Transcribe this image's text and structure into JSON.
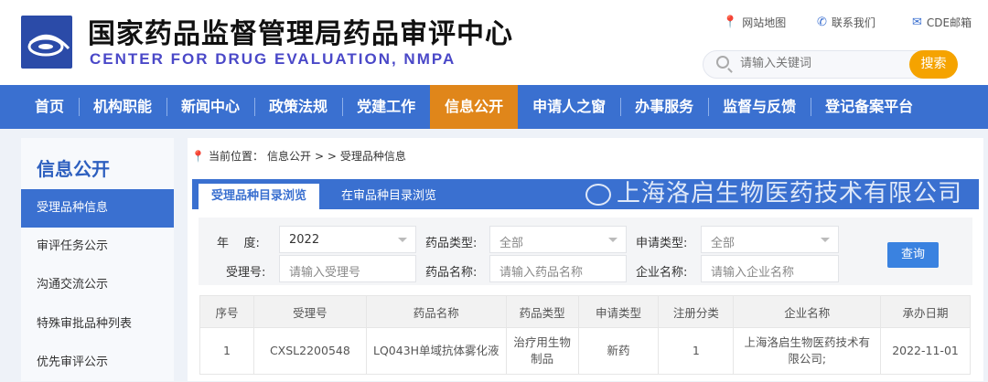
{
  "header": {
    "title": "国家药品监督管理局药品审评中心",
    "subtitle": "CENTER FOR DRUG EVALUATION, NMPA",
    "links": [
      {
        "label": "网站地图",
        "icon": "location-pin-icon"
      },
      {
        "label": "联系我们",
        "icon": "phone-icon"
      },
      {
        "label": "CDE邮箱",
        "icon": "mail-icon"
      }
    ],
    "search_placeholder": "请输入关键词",
    "search_button": "搜索"
  },
  "nav": [
    "首页",
    "机构职能",
    "新闻中心",
    "政策法规",
    "党建工作",
    "信息公开",
    "申请人之窗",
    "办事服务",
    "监督与反馈",
    "登记备案平台"
  ],
  "nav_active": "信息公开",
  "sidebar": {
    "title": "信息公开",
    "items": [
      "受理品种信息",
      "审评任务公示",
      "沟通交流公示",
      "特殊审批品种列表",
      "优先审评公示"
    ]
  },
  "breadcrumb": {
    "prefix": "当前位置：",
    "path": "信息公开",
    "sep": "> >",
    "current": "受理品种信息"
  },
  "tabs": [
    "受理品种目录浏览",
    "在审品种目录浏览"
  ],
  "form": {
    "year_label": "年    度:",
    "year_value": "2022",
    "drug_type_label": "药品类型:",
    "drug_type_value": "全部",
    "apply_type_label": "申请类型:",
    "apply_type_value": "全部",
    "accept_no_label": "受理号:",
    "accept_no_placeholder": "请输入受理号",
    "drug_name_label": "药品名称:",
    "drug_name_placeholder": "请输入药品名称",
    "company_label": "企业名称:",
    "company_placeholder": "请输入企业名称",
    "query_button": "查询"
  },
  "table": {
    "headers": [
      "序号",
      "受理号",
      "药品名称",
      "药品类型",
      "申请类型",
      "注册分类",
      "企业名称",
      "承办日期"
    ],
    "rows": [
      [
        "1",
        "CXSL2200548",
        "LQ043H单域抗体雾化液",
        "治疗用生物制品",
        "新药",
        "1",
        "上海洛启生物医药技术有限公司;",
        "2022-11-01"
      ]
    ]
  },
  "watermark": "上海洛启生物医药技术有限公司",
  "colors": {
    "nav": "#3a70d0",
    "active": "#e0861a",
    "search_button": "#f5a300"
  }
}
